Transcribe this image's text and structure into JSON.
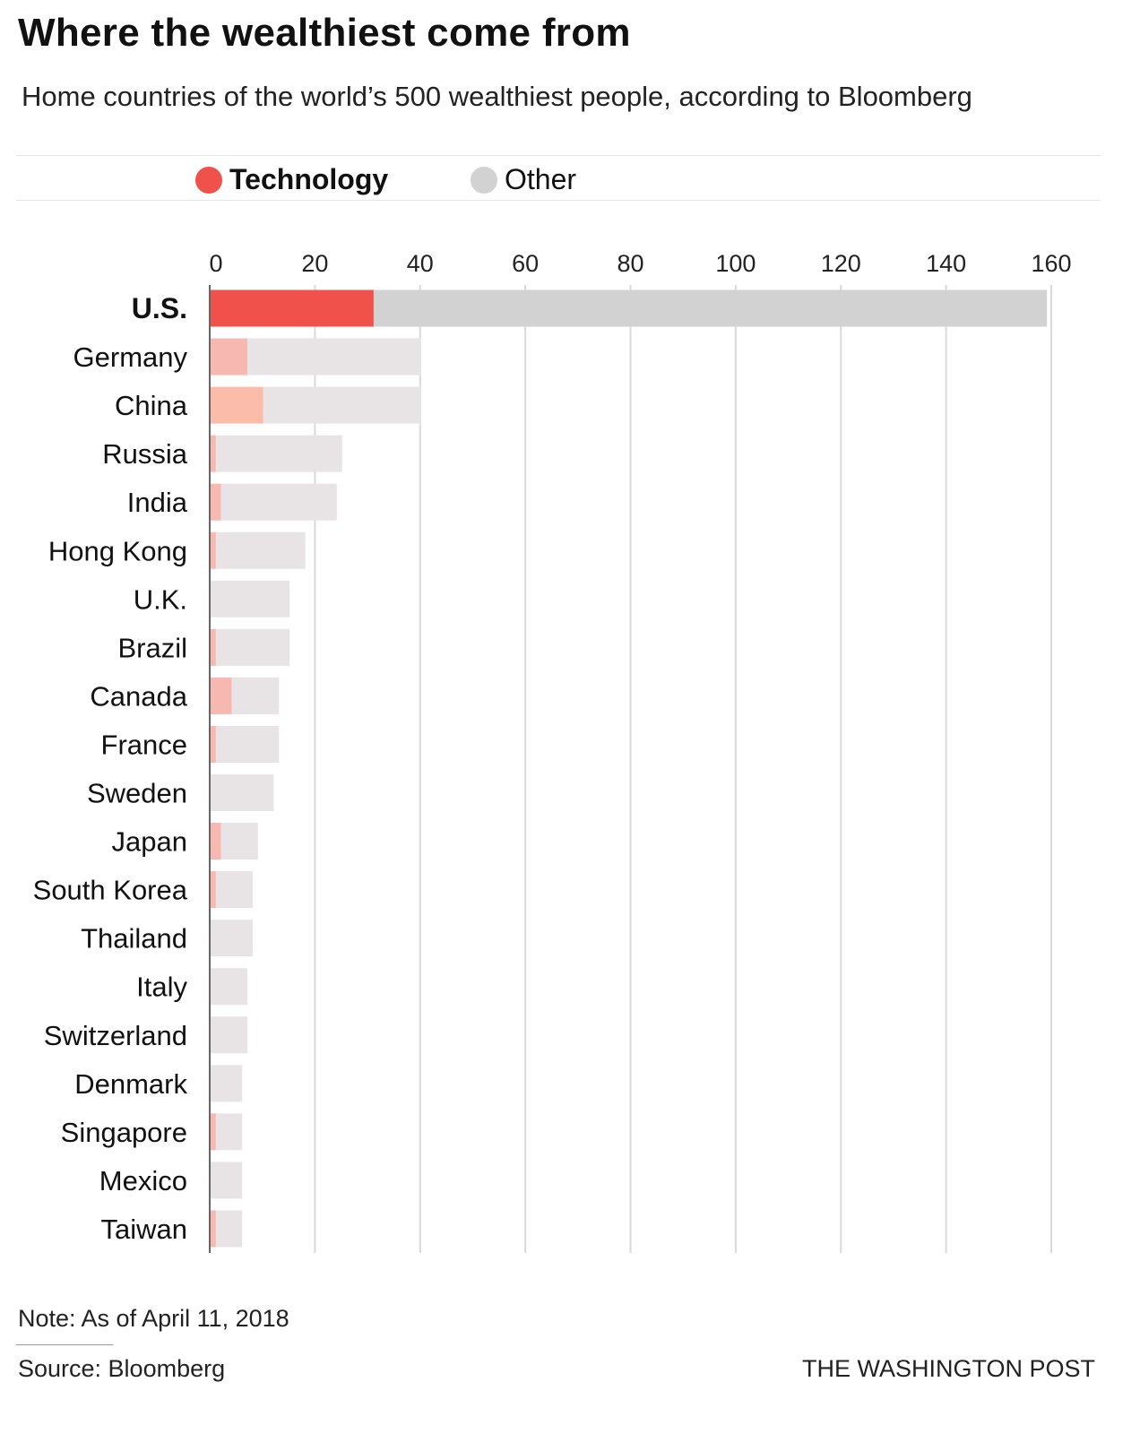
{
  "chart_data": {
    "type": "bar",
    "orientation": "horizontal",
    "stacked": true,
    "title": "Where the wealthiest come from",
    "subtitle": "Home countries of the world’s 500 wealthiest people, according to Bloomberg",
    "legend": {
      "position": "top",
      "entries": [
        "Technology",
        "Other"
      ]
    },
    "xlim": [
      0,
      160
    ],
    "xticks": [
      0,
      20,
      40,
      60,
      80,
      100,
      120,
      140,
      160
    ],
    "grid": true,
    "categories": [
      "U.S.",
      "Germany",
      "China",
      "Russia",
      "India",
      "Hong Kong",
      "U.K.",
      "Brazil",
      "Canada",
      "France",
      "Sweden",
      "Japan",
      "South Korea",
      "Thailand",
      "Italy",
      "Switzerland",
      "Denmark",
      "Singapore",
      "Mexico",
      "Taiwan"
    ],
    "series": [
      {
        "name": "Technology",
        "values": [
          31,
          7,
          10,
          1,
          2,
          1,
          0,
          1,
          4,
          1,
          0,
          2,
          1,
          0,
          0,
          0,
          0,
          1,
          0,
          1
        ]
      },
      {
        "name": "Other",
        "values": [
          128,
          33,
          30,
          24,
          22,
          17,
          15,
          14,
          9,
          12,
          12,
          7,
          7,
          8,
          7,
          7,
          6,
          5,
          6,
          5
        ]
      }
    ],
    "colors": {
      "technology_highlight": "#f0524b",
      "other_highlight": "#d2d2d2",
      "technology": "#f6b8b0",
      "other": "#e8e4e6",
      "china_technology": "#fbbcaa"
    },
    "highlighted_category": "U.S."
  },
  "footer": {
    "note": "Note: As of April 11, 2018",
    "source": "Source: Bloomberg",
    "credit": "THE WASHINGTON POST"
  }
}
